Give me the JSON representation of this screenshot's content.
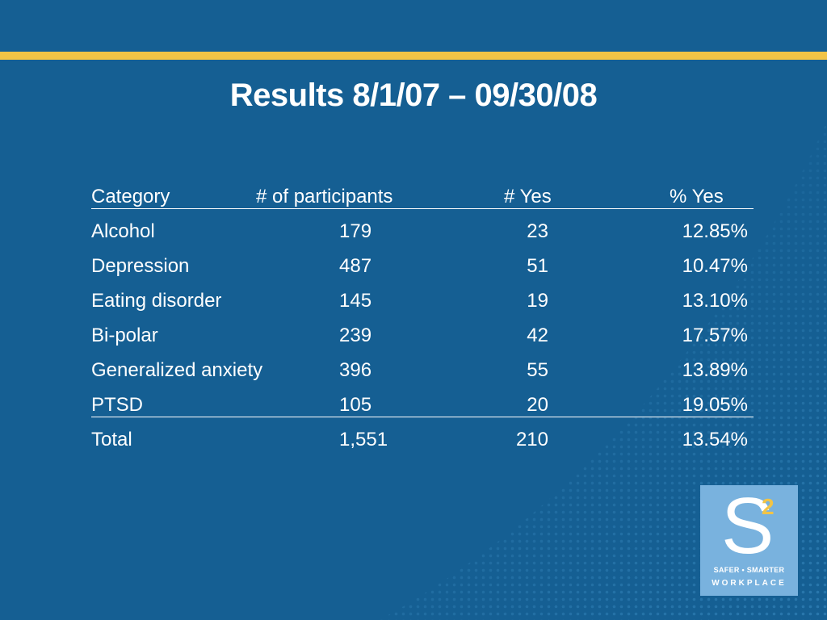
{
  "slide": {
    "title": "Results 8/1/07 – 09/30/08"
  },
  "table": {
    "headers": [
      "Category",
      "# of participants",
      "# Yes",
      "% Yes"
    ],
    "rows": [
      [
        "Alcohol",
        "179",
        "23",
        "12.85%"
      ],
      [
        "Depression",
        "487",
        "51",
        "10.47%"
      ],
      [
        "Eating disorder",
        "145",
        "19",
        "13.10%"
      ],
      [
        "Bi-polar",
        "239",
        "42",
        "17.57%"
      ],
      [
        "Generalized anxiety",
        "396",
        "55",
        "13.89%"
      ],
      [
        "PTSD",
        "105",
        "20",
        "19.05%"
      ],
      [
        "Total",
        "1,551",
        "210",
        "13.54%"
      ]
    ]
  },
  "logo": {
    "letter": "S",
    "superscript": "2",
    "line1": "SAFER • SMARTER",
    "line2": "WORKPLACE"
  },
  "colors": {
    "background": "#155f93",
    "accent": "#f2c446",
    "logo_box": "#79b2de"
  }
}
